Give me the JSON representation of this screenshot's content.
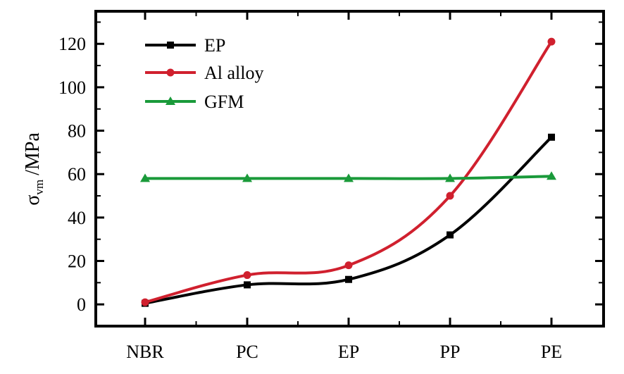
{
  "chart_data": {
    "type": "line",
    "categories": [
      "NBR",
      "PC",
      "EP",
      "PP",
      "PE"
    ],
    "series": [
      {
        "name": "EP",
        "values": [
          0.5,
          9,
          11.5,
          32,
          77
        ],
        "color": "#000000",
        "marker": "square"
      },
      {
        "name": "Al alloy",
        "values": [
          1,
          13.5,
          18,
          50,
          121
        ],
        "color": "#d0202e",
        "marker": "circle"
      },
      {
        "name": "GFM",
        "values": [
          58,
          58,
          58,
          58,
          59
        ],
        "color": "#1a9a3a",
        "marker": "triangle"
      }
    ],
    "ylabel": {
      "symbol": "σ",
      "subscript": "vm",
      "unit": "/MPa"
    },
    "yticks": [
      0,
      20,
      40,
      60,
      80,
      100,
      120
    ],
    "ylim": [
      -10,
      135
    ],
    "grid": false,
    "legend_position": "top-left"
  }
}
